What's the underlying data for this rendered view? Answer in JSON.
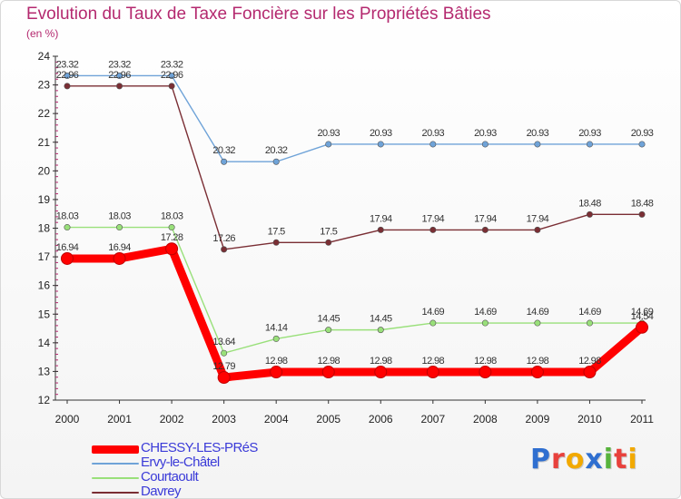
{
  "page": {
    "title": "Evolution du Taux de Taxe Foncière sur les Propriétés Bâties",
    "subtitle": "(en %)"
  },
  "chart_data": {
    "type": "line",
    "title": "Evolution du Taux de Taxe Foncière sur les Propriétés Bâties",
    "ylabel": "(en %)",
    "xlabel": "",
    "ylim": [
      12,
      24
    ],
    "yticks": [
      "12",
      "13",
      "14",
      "15",
      "16",
      "17",
      "18",
      "19",
      "20",
      "21",
      "22",
      "23",
      "24"
    ],
    "categories": [
      "2000",
      "2001",
      "2002",
      "2003",
      "2004",
      "2005",
      "2006",
      "2007",
      "2008",
      "2009",
      "2010",
      "2011"
    ],
    "grid": false,
    "legend_position": "bottom-left",
    "series": [
      {
        "name": "CHESSY-LES-PRéS",
        "color": "#ff0000",
        "values": [
          16.94,
          16.94,
          17.28,
          12.79,
          12.98,
          12.98,
          12.98,
          12.98,
          12.98,
          12.98,
          12.98,
          14.54
        ],
        "labels": [
          "16.94",
          "16.94",
          "17.28",
          "12.79",
          "12.98",
          "12.98",
          "12.98",
          "12.98",
          "12.98",
          "12.98",
          "12.98",
          "14.54"
        ]
      },
      {
        "name": "Ervy-le-Châtel",
        "color": "#6fa3d8",
        "values": [
          23.32,
          23.32,
          23.32,
          20.32,
          20.32,
          20.93,
          20.93,
          20.93,
          20.93,
          20.93,
          20.93,
          20.93
        ],
        "labels": [
          "23.32",
          "23.32",
          "23.32",
          "20.32",
          "20.32",
          "20.93",
          "20.93",
          "20.93",
          "20.93",
          "20.93",
          "20.93",
          "20.93"
        ]
      },
      {
        "name": "Courtaoult",
        "color": "#99e07a",
        "values": [
          18.03,
          18.03,
          18.03,
          13.64,
          14.14,
          14.45,
          14.45,
          14.69,
          14.69,
          14.69,
          14.69,
          14.69
        ],
        "labels": [
          "18.03",
          "18.03",
          "18.03",
          "13.64",
          "14.14",
          "14.45",
          "14.45",
          "14.69",
          "14.69",
          "14.69",
          "14.69",
          "14.69"
        ]
      },
      {
        "name": "Davrey",
        "color": "#7a2e34",
        "values": [
          22.96,
          22.96,
          22.96,
          17.26,
          17.5,
          17.5,
          17.94,
          17.94,
          17.94,
          17.94,
          18.48,
          18.48
        ],
        "labels": [
          "22.96",
          "22.96",
          "22.96",
          "17.26",
          "17.5",
          "17.5",
          "17.94",
          "17.94",
          "17.94",
          "17.94",
          "18.48",
          "18.48"
        ]
      }
    ]
  },
  "logo": {
    "letters": [
      "P",
      "r",
      "o",
      "x",
      "i",
      "t",
      "i"
    ],
    "colors": [
      "#2f6fd0",
      "#e8413c",
      "#f2a900",
      "#2f6fd0",
      "#57b33c",
      "#e8413c",
      "#f2a900"
    ]
  }
}
